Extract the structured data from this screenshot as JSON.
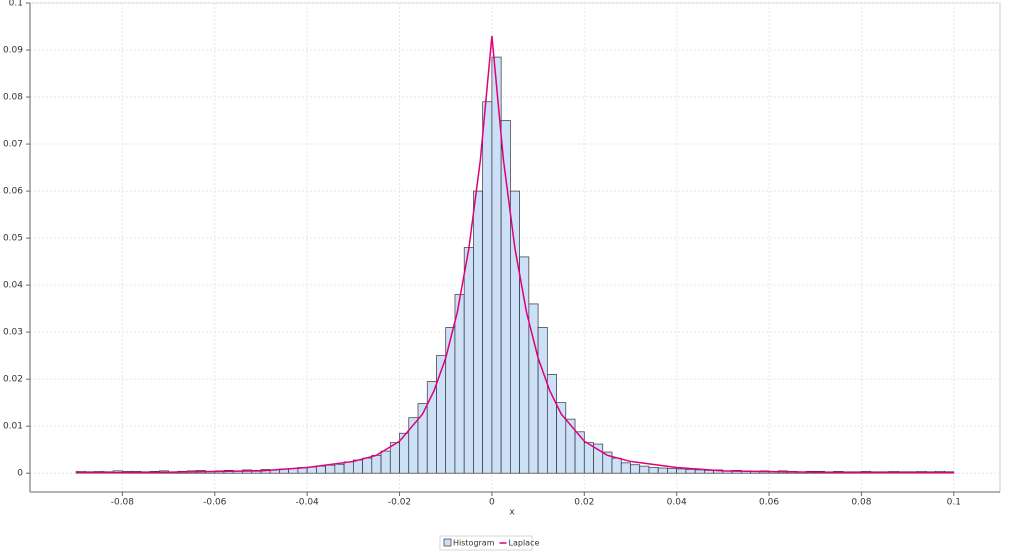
{
  "chart_data": {
    "type": "histogram",
    "x_label": "x",
    "xlim": [
      -0.1,
      0.11
    ],
    "ylim": [
      -0.004,
      0.1
    ],
    "xticks": [
      -0.08,
      -0.06,
      -0.04,
      -0.02,
      0,
      0.02,
      0.04,
      0.06,
      0.08,
      0.1
    ],
    "yticks": [
      0,
      0.01,
      0.02,
      0.03,
      0.04,
      0.05,
      0.06,
      0.07,
      0.08,
      0.09,
      0.1
    ],
    "grid": true,
    "bins": [
      -0.09,
      -0.088,
      -0.086,
      -0.084,
      -0.082,
      -0.08,
      -0.078,
      -0.076,
      -0.074,
      -0.072,
      -0.07,
      -0.068,
      -0.066,
      -0.064,
      -0.062,
      -0.06,
      -0.058,
      -0.056,
      -0.054,
      -0.052,
      -0.05,
      -0.048,
      -0.046,
      -0.044,
      -0.042,
      -0.04,
      -0.038,
      -0.036,
      -0.034,
      -0.032,
      -0.03,
      -0.028,
      -0.026,
      -0.024,
      -0.022,
      -0.02,
      -0.018,
      -0.016,
      -0.014,
      -0.012,
      -0.01,
      -0.008,
      -0.006,
      -0.004,
      -0.002,
      0,
      0.002,
      0.004,
      0.006,
      0.008,
      0.01,
      0.012,
      0.014,
      0.016,
      0.018,
      0.02,
      0.022,
      0.024,
      0.026,
      0.028,
      0.03,
      0.032,
      0.034,
      0.036,
      0.038,
      0.04,
      0.042,
      0.044,
      0.046,
      0.048,
      0.05,
      0.052,
      0.054,
      0.056,
      0.058,
      0.06,
      0.062,
      0.064,
      0.066,
      0.068,
      0.07,
      0.072,
      0.074,
      0.076,
      0.078,
      0.08,
      0.082,
      0.084,
      0.086,
      0.088,
      0.09,
      0.092,
      0.094,
      0.096,
      0.098,
      0.1
    ],
    "series": [
      {
        "name": "Histogram",
        "type": "histogram",
        "color": "#cce0f7",
        "values": [
          0.0004,
          0.0003,
          0.0004,
          0.0003,
          0.0005,
          0.0004,
          0.0004,
          0.0003,
          0.0004,
          0.0005,
          0.0003,
          0.0004,
          0.0005,
          0.0006,
          0.0004,
          0.0005,
          0.0006,
          0.0005,
          0.0007,
          0.0006,
          0.0008,
          0.0007,
          0.0009,
          0.001,
          0.0012,
          0.0013,
          0.0015,
          0.0017,
          0.0019,
          0.0024,
          0.0028,
          0.0032,
          0.0038,
          0.0047,
          0.0065,
          0.0085,
          0.0118,
          0.0148,
          0.0195,
          0.025,
          0.031,
          0.038,
          0.048,
          0.06,
          0.079,
          0.0885,
          0.075,
          0.06,
          0.046,
          0.036,
          0.031,
          0.021,
          0.015,
          0.0115,
          0.0088,
          0.0065,
          0.0062,
          0.0045,
          0.0032,
          0.0022,
          0.0018,
          0.0015,
          0.0012,
          0.0011,
          0.001,
          0.0009,
          0.0008,
          0.0007,
          0.0006,
          0.0007,
          0.0005,
          0.0006,
          0.0005,
          0.0004,
          0.0005,
          0.0004,
          0.0005,
          0.0004,
          0.0003,
          0.0004,
          0.0004,
          0.0003,
          0.0004,
          0.0003,
          0.0003,
          0.0004,
          0.0003,
          0.0003,
          0.0004,
          0.0003,
          0.0003,
          0.0004,
          0.0003,
          0.0004,
          0.0003
        ]
      },
      {
        "name": "Laplace",
        "type": "line",
        "color": "#e0007a",
        "x": [
          -0.09,
          -0.07,
          -0.05,
          -0.04,
          -0.03,
          -0.025,
          -0.02,
          -0.015,
          -0.0125,
          -0.01,
          -0.0075,
          -0.005,
          -0.0025,
          0,
          0.0025,
          0.005,
          0.0075,
          0.01,
          0.0125,
          0.015,
          0.02,
          0.025,
          0.03,
          0.04,
          0.05,
          0.07,
          0.09,
          0.1
        ],
        "values": [
          0.0001,
          0.0002,
          0.0005,
          0.0012,
          0.0025,
          0.0038,
          0.0068,
          0.0126,
          0.0176,
          0.0245,
          0.0342,
          0.0477,
          0.0666,
          0.093,
          0.0666,
          0.0477,
          0.0342,
          0.0245,
          0.0176,
          0.0126,
          0.0068,
          0.0038,
          0.0025,
          0.0012,
          0.0005,
          0.0002,
          0.0001,
          0.0001
        ]
      }
    ]
  }
}
